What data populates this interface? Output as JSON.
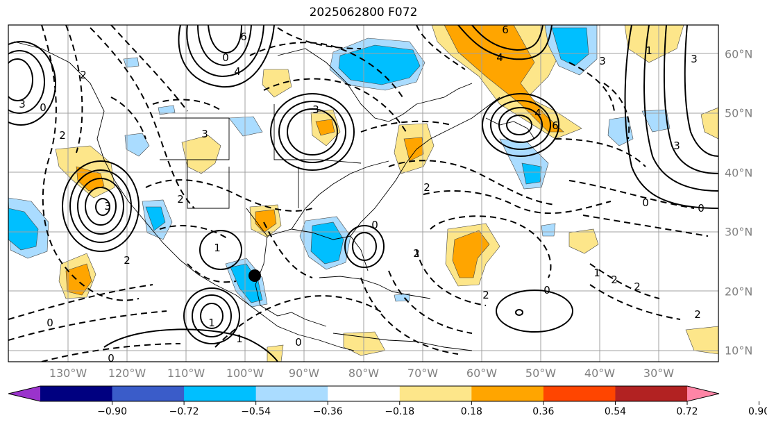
{
  "title": "2025062800 F072",
  "longitude_labels": [
    "130°W",
    "120°W",
    "110°W",
    "100°W",
    "90°W",
    "80°W",
    "70°W",
    "60°W",
    "50°W",
    "40°W",
    "30°W"
  ],
  "latitude_labels": [
    "60°N",
    "50°N",
    "40°N",
    "30°N",
    "20°N",
    "10°N"
  ],
  "colorbar": {
    "tick_labels": [
      "−0.90",
      "−0.72",
      "−0.54",
      "−0.36",
      "−0.18",
      "0.18",
      "0.36",
      "0.54",
      "0.72",
      "0.90"
    ],
    "colors": [
      "#9a33cc",
      "#000080",
      "#3a5cc9",
      "#00bfff",
      "#aadcff",
      "#ffffff",
      "#fde68a",
      "#ffa500",
      "#ff4500",
      "#b22222",
      "#ff85a6"
    ]
  },
  "contour_labels": [
    "6",
    "4",
    "6",
    "4",
    "3",
    "3",
    "3",
    "3",
    "2",
    "2",
    "2",
    "2",
    "1",
    "1",
    "0",
    "0",
    "0",
    "0",
    "0",
    "0",
    "1",
    "2",
    "2",
    "3",
    "2",
    "0",
    "4",
    "6",
    "3",
    "2",
    "1",
    "1",
    "0",
    "0",
    "2",
    "2",
    "3"
  ],
  "storm_marker": {
    "latitude": 22.5,
    "longitude": -97.5,
    "label": ""
  }
}
